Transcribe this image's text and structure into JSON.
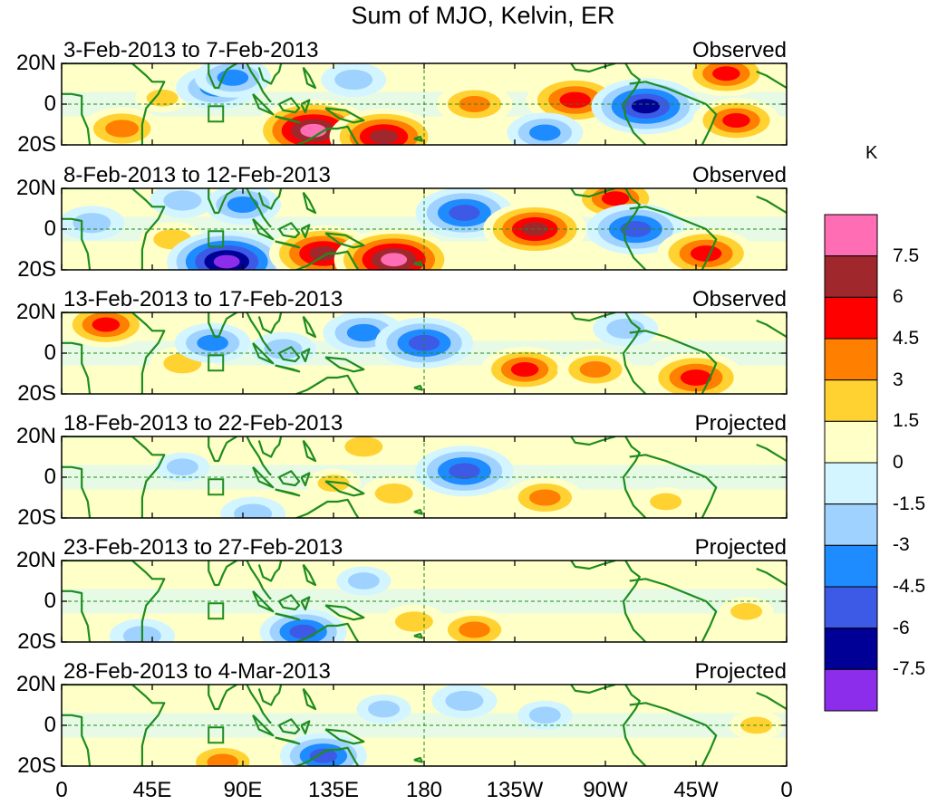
{
  "title": "Sum of MJO, Kelvin, ER",
  "chart_data": {
    "type": "heatmap",
    "title": "Sum of MJO, Kelvin, ER",
    "variable_unit": "K",
    "x_ticks": [
      "0",
      "45E",
      "90E",
      "135E",
      "180",
      "135W",
      "90W",
      "45W",
      "0"
    ],
    "y_ticks": [
      "20N",
      "0",
      "20S"
    ],
    "xlim": [
      0,
      360
    ],
    "ylim": [
      -20,
      20
    ],
    "panels": [
      {
        "period": "3-Feb-2013 to 7-Feb-2013",
        "status": "Observed",
        "anomalies": [
          {
            "lon": 30,
            "lat": -12,
            "value": 4.5
          },
          {
            "lon": 50,
            "lat": 3,
            "value": 2
          },
          {
            "lon": 77,
            "lat": 8,
            "value": -4.5
          },
          {
            "lon": 85,
            "lat": 13,
            "value": -4
          },
          {
            "lon": 125,
            "lat": -13,
            "value": 8
          },
          {
            "lon": 160,
            "lat": -16,
            "value": 7
          },
          {
            "lon": 145,
            "lat": 12,
            "value": -3
          },
          {
            "lon": 205,
            "lat": 0,
            "value": 4
          },
          {
            "lon": 255,
            "lat": 2,
            "value": 6
          },
          {
            "lon": 290,
            "lat": -1,
            "value": -7
          },
          {
            "lon": 335,
            "lat": -8,
            "value": 5
          },
          {
            "lon": 330,
            "lat": 15,
            "value": 5
          },
          {
            "lon": 240,
            "lat": -14,
            "value": -4
          }
        ]
      },
      {
        "period": "8-Feb-2013 to 12-Feb-2013",
        "status": "Observed",
        "anomalies": [
          {
            "lon": 15,
            "lat": 3,
            "value": -3
          },
          {
            "lon": 55,
            "lat": -5,
            "value": 3
          },
          {
            "lon": 82,
            "lat": -16,
            "value": -8
          },
          {
            "lon": 90,
            "lat": 12,
            "value": -4
          },
          {
            "lon": 130,
            "lat": -12,
            "value": 7
          },
          {
            "lon": 165,
            "lat": -15,
            "value": 8
          },
          {
            "lon": 200,
            "lat": 8,
            "value": -6
          },
          {
            "lon": 235,
            "lat": 0,
            "value": 6.5
          },
          {
            "lon": 275,
            "lat": 15,
            "value": 5
          },
          {
            "lon": 285,
            "lat": 0,
            "value": -6
          },
          {
            "lon": 320,
            "lat": -12,
            "value": 6
          },
          {
            "lon": 60,
            "lat": 14,
            "value": -3
          }
        ]
      },
      {
        "period": "13-Feb-2013 to 17-Feb-2013",
        "status": "Observed",
        "anomalies": [
          {
            "lon": 22,
            "lat": 14,
            "value": 5
          },
          {
            "lon": 60,
            "lat": -5,
            "value": 3
          },
          {
            "lon": 75,
            "lat": 5,
            "value": -4
          },
          {
            "lon": 110,
            "lat": 2,
            "value": -3
          },
          {
            "lon": 150,
            "lat": 10,
            "value": -4.5
          },
          {
            "lon": 180,
            "lat": 5,
            "value": -6
          },
          {
            "lon": 230,
            "lat": -8,
            "value": 5
          },
          {
            "lon": 265,
            "lat": -8,
            "value": 4
          },
          {
            "lon": 315,
            "lat": -12,
            "value": 6
          },
          {
            "lon": 280,
            "lat": 12,
            "value": -3
          }
        ]
      },
      {
        "period": "18-Feb-2013 to 22-Feb-2013",
        "status": "Projected",
        "anomalies": [
          {
            "lon": 60,
            "lat": 5,
            "value": -2
          },
          {
            "lon": 135,
            "lat": -3,
            "value": 2
          },
          {
            "lon": 200,
            "lat": 3,
            "value": -6
          },
          {
            "lon": 240,
            "lat": -10,
            "value": 4
          },
          {
            "lon": 165,
            "lat": -8,
            "value": 3
          },
          {
            "lon": 150,
            "lat": 15,
            "value": 3
          },
          {
            "lon": 95,
            "lat": -18,
            "value": -3
          },
          {
            "lon": 300,
            "lat": -12,
            "value": 2
          }
        ]
      },
      {
        "period": "23-Feb-2013 to 27-Feb-2013",
        "status": "Projected",
        "anomalies": [
          {
            "lon": 120,
            "lat": -15,
            "value": -5
          },
          {
            "lon": 40,
            "lat": -17,
            "value": -3
          },
          {
            "lon": 175,
            "lat": -10,
            "value": 3
          },
          {
            "lon": 205,
            "lat": -14,
            "value": 4
          },
          {
            "lon": 150,
            "lat": 10,
            "value": -2
          },
          {
            "lon": 340,
            "lat": -5,
            "value": 2
          }
        ]
      },
      {
        "period": "28-Feb-2013 to 4-Mar-2013",
        "status": "Projected",
        "anomalies": [
          {
            "lon": 130,
            "lat": -15,
            "value": -5
          },
          {
            "lon": 80,
            "lat": -18,
            "value": 4
          },
          {
            "lon": 200,
            "lat": 12,
            "value": -3
          },
          {
            "lon": 240,
            "lat": 5,
            "value": -2
          },
          {
            "lon": 160,
            "lat": 8,
            "value": -2
          },
          {
            "lon": 345,
            "lat": 0,
            "value": 2
          }
        ]
      }
    ],
    "colorbar": {
      "unit": "K",
      "levels": [
        "7.5",
        "6",
        "4.5",
        "3",
        "1.5",
        "0",
        "-1.5",
        "-3",
        "-4.5",
        "-6",
        "-7.5"
      ],
      "colors": [
        "#ff6eb4",
        "#a0282d",
        "#ff0000",
        "#ff7f00",
        "#ffd232",
        "#ffffc8",
        "#d2f5ff",
        "#a0d2ff",
        "#1e8cff",
        "#3c5ae6",
        "#000096",
        "#8c2deb"
      ]
    },
    "land_color": "#1e8c1e"
  }
}
